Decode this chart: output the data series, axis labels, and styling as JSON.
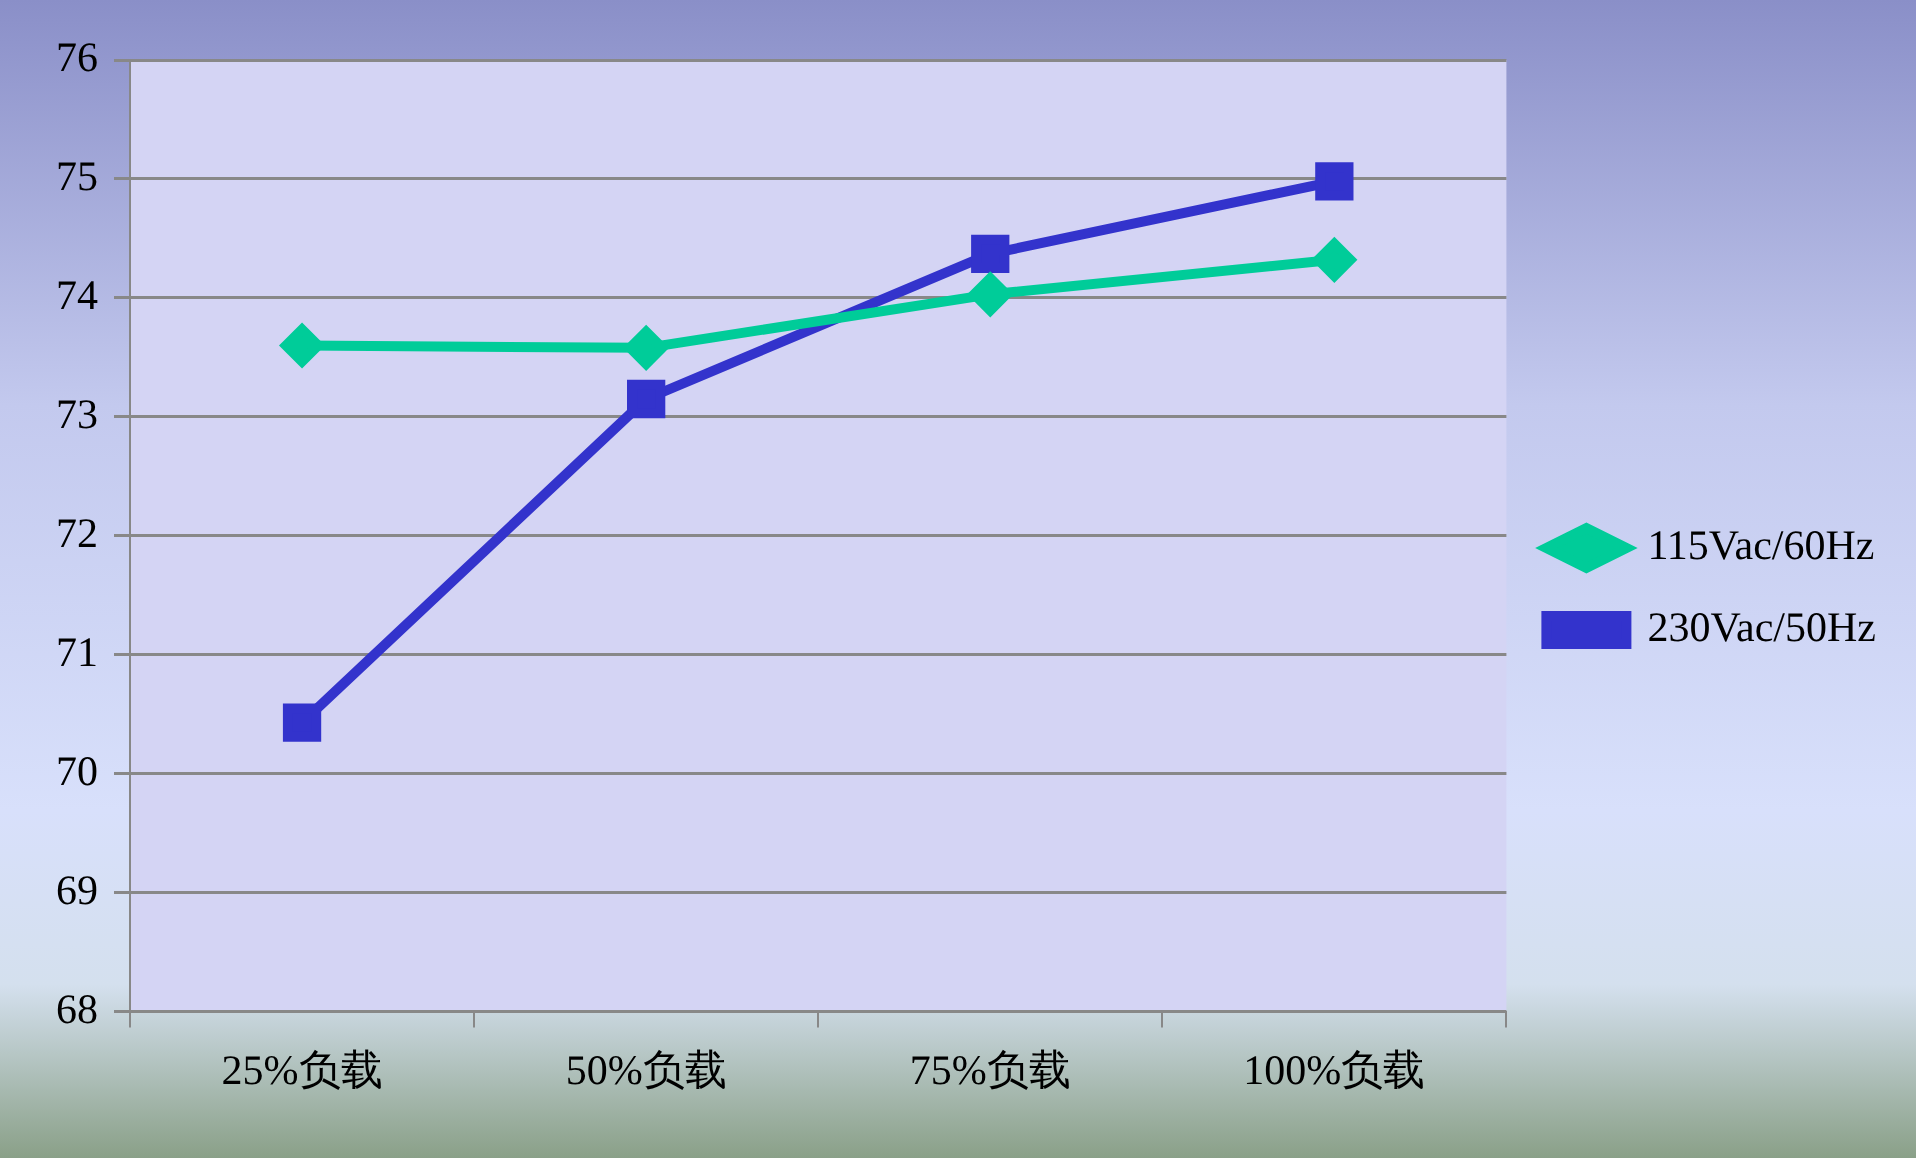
{
  "chart_data": {
    "type": "line",
    "categories": [
      "25%负载",
      "50%负载",
      "75%负载",
      "100%负载"
    ],
    "series": [
      {
        "name": "115Vac/60Hz",
        "color": "#00cc99",
        "marker": "diamond",
        "values": [
          73.6,
          73.58,
          74.03,
          74.32
        ]
      },
      {
        "name": "230Vac/50Hz",
        "color": "#3333cc",
        "marker": "square",
        "values": [
          70.43,
          73.15,
          74.37,
          74.98
        ]
      }
    ],
    "ylim": [
      68,
      76
    ],
    "yticks": [
      68,
      69,
      70,
      71,
      72,
      73,
      74,
      75,
      76
    ],
    "grid": "y",
    "legend": "right",
    "line_style": "solid"
  }
}
